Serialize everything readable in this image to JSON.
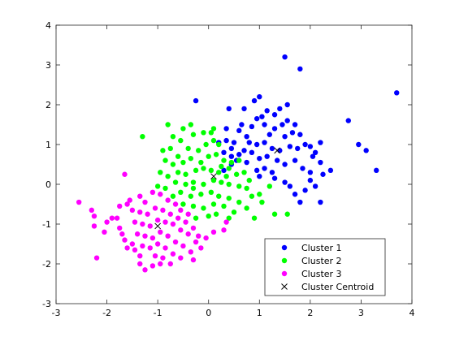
{
  "chart_data": {
    "type": "scatter",
    "title": "",
    "xlabel": "",
    "ylabel": "",
    "xlim": [
      -3,
      4
    ],
    "ylim": [
      -3,
      4
    ],
    "xticks": [
      -3,
      -2,
      -1,
      0,
      1,
      2,
      3,
      4
    ],
    "yticks": [
      -3,
      -2,
      -1,
      0,
      1,
      2,
      3,
      4
    ],
    "grid": false,
    "legend_position": "bottom-right",
    "series": [
      {
        "name": "Cluster 1",
        "color": "#0000ff",
        "marker": "circle",
        "points": [
          [
            1.5,
            3.2
          ],
          [
            1.8,
            2.9
          ],
          [
            -0.25,
            2.1
          ],
          [
            0.9,
            2.1
          ],
          [
            1.0,
            2.2
          ],
          [
            0.7,
            1.9
          ],
          [
            0.4,
            1.9
          ],
          [
            1.55,
            2.0
          ],
          [
            1.3,
            1.75
          ],
          [
            1.4,
            1.9
          ],
          [
            1.05,
            1.7
          ],
          [
            1.15,
            1.85
          ],
          [
            0.65,
            1.5
          ],
          [
            0.85,
            1.45
          ],
          [
            0.95,
            1.65
          ],
          [
            1.1,
            1.5
          ],
          [
            1.3,
            1.4
          ],
          [
            1.45,
            1.5
          ],
          [
            1.55,
            1.6
          ],
          [
            1.7,
            1.5
          ],
          [
            1.65,
            1.3
          ],
          [
            1.8,
            1.25
          ],
          [
            1.5,
            1.2
          ],
          [
            1.2,
            1.25
          ],
          [
            0.35,
            1.4
          ],
          [
            0.6,
            1.35
          ],
          [
            0.75,
            1.2
          ],
          [
            0.8,
            1.05
          ],
          [
            0.95,
            1.0
          ],
          [
            1.1,
            1.05
          ],
          [
            1.25,
            0.9
          ],
          [
            1.4,
            0.85
          ],
          [
            1.6,
            0.95
          ],
          [
            1.75,
            0.9
          ],
          [
            1.9,
            1.0
          ],
          [
            2.0,
            0.95
          ],
          [
            2.2,
            1.05
          ],
          [
            2.1,
            0.8
          ],
          [
            2.05,
            0.7
          ],
          [
            2.2,
            0.55
          ],
          [
            2.4,
            0.35
          ],
          [
            2.25,
            0.25
          ],
          [
            0.2,
            1.05
          ],
          [
            0.35,
            1.1
          ],
          [
            0.5,
            1.05
          ],
          [
            0.45,
            0.9
          ],
          [
            0.6,
            0.75
          ],
          [
            0.7,
            0.85
          ],
          [
            0.85,
            0.8
          ],
          [
            1.0,
            0.65
          ],
          [
            1.15,
            0.7
          ],
          [
            1.35,
            0.6
          ],
          [
            1.5,
            0.5
          ],
          [
            1.7,
            0.6
          ],
          [
            1.85,
            0.4
          ],
          [
            2.0,
            0.3
          ],
          [
            1.3,
            0.15
          ],
          [
            1.5,
            0.05
          ],
          [
            1.6,
            -0.05
          ],
          [
            1.7,
            -0.25
          ],
          [
            1.9,
            -0.15
          ],
          [
            2.1,
            -0.05
          ],
          [
            2.2,
            -0.45
          ],
          [
            1.8,
            -0.45
          ],
          [
            2.0,
            0.1
          ],
          [
            2.75,
            1.6
          ],
          [
            2.95,
            1.0
          ],
          [
            3.1,
            0.85
          ],
          [
            3.3,
            0.35
          ],
          [
            3.7,
            2.3
          ],
          [
            0.3,
            0.35
          ],
          [
            0.45,
            0.5
          ],
          [
            0.55,
            0.6
          ],
          [
            0.75,
            0.55
          ],
          [
            0.95,
            0.35
          ],
          [
            1.1,
            0.4
          ],
          [
            1.0,
            0.2
          ],
          [
            1.25,
            0.3
          ],
          [
            0.3,
            0.8
          ],
          [
            0.45,
            0.7
          ]
        ]
      },
      {
        "name": "Cluster 2",
        "color": "#00ff00",
        "marker": "circle",
        "points": [
          [
            -0.8,
            1.5
          ],
          [
            -1.3,
            1.2
          ],
          [
            -0.35,
            1.5
          ],
          [
            -0.5,
            1.4
          ],
          [
            -0.3,
            1.25
          ],
          [
            -0.1,
            1.3
          ],
          [
            0.05,
            1.3
          ],
          [
            0.1,
            1.4
          ],
          [
            -0.7,
            1.2
          ],
          [
            -0.55,
            1.1
          ],
          [
            -0.75,
            0.9
          ],
          [
            -0.9,
            0.85
          ],
          [
            -0.4,
            0.9
          ],
          [
            -0.2,
            0.85
          ],
          [
            -0.05,
            1.0
          ],
          [
            0.1,
            1.1
          ],
          [
            0.2,
            1.0
          ],
          [
            -0.85,
            0.6
          ],
          [
            -0.7,
            0.5
          ],
          [
            -0.5,
            0.55
          ],
          [
            -0.35,
            0.65
          ],
          [
            -0.15,
            0.55
          ],
          [
            0.0,
            0.7
          ],
          [
            0.15,
            0.75
          ],
          [
            0.3,
            0.6
          ],
          [
            0.4,
            0.4
          ],
          [
            -0.95,
            0.3
          ],
          [
            -0.8,
            0.2
          ],
          [
            -0.6,
            0.3
          ],
          [
            -0.45,
            0.25
          ],
          [
            -0.25,
            0.35
          ],
          [
            -0.1,
            0.4
          ],
          [
            0.05,
            0.35
          ],
          [
            0.2,
            0.3
          ],
          [
            0.35,
            0.2
          ],
          [
            0.55,
            0.25
          ],
          [
            0.7,
            0.3
          ],
          [
            0.8,
            0.1
          ],
          [
            -1.0,
            -0.05
          ],
          [
            -0.85,
            -0.1
          ],
          [
            -0.65,
            0.05
          ],
          [
            -0.45,
            0.0
          ],
          [
            -0.3,
            -0.1
          ],
          [
            -0.1,
            0.0
          ],
          [
            0.1,
            0.1
          ],
          [
            0.25,
            0.05
          ],
          [
            0.4,
            0.0
          ],
          [
            0.6,
            -0.05
          ],
          [
            0.75,
            -0.1
          ],
          [
            1.0,
            -0.25
          ],
          [
            1.2,
            -0.05
          ],
          [
            -0.7,
            -0.3
          ],
          [
            -0.55,
            -0.2
          ],
          [
            -0.35,
            -0.3
          ],
          [
            -0.15,
            -0.25
          ],
          [
            0.05,
            -0.2
          ],
          [
            0.2,
            -0.3
          ],
          [
            0.4,
            -0.35
          ],
          [
            0.6,
            -0.45
          ],
          [
            0.85,
            -0.3
          ],
          [
            -0.5,
            -0.5
          ],
          [
            -0.3,
            -0.55
          ],
          [
            -0.1,
            -0.6
          ],
          [
            0.1,
            -0.5
          ],
          [
            0.3,
            -0.55
          ],
          [
            0.5,
            -0.7
          ],
          [
            0.75,
            -0.6
          ],
          [
            1.05,
            -0.45
          ],
          [
            -0.25,
            -0.85
          ],
          [
            0.0,
            -0.8
          ],
          [
            0.15,
            -0.75
          ],
          [
            0.4,
            -0.85
          ],
          [
            0.9,
            -0.85
          ],
          [
            1.3,
            -0.75
          ],
          [
            1.55,
            -0.75
          ],
          [
            -0.3,
            0.05
          ],
          [
            0.45,
            0.55
          ],
          [
            0.6,
            0.6
          ],
          [
            0.25,
            0.45
          ],
          [
            -0.6,
            0.7
          ]
        ]
      },
      {
        "name": "Cluster 3",
        "color": "#ff00ff",
        "marker": "circle",
        "points": [
          [
            -1.65,
            0.25
          ],
          [
            -2.55,
            -0.45
          ],
          [
            -2.3,
            -0.65
          ],
          [
            -2.25,
            -0.8
          ],
          [
            -2.25,
            -1.05
          ],
          [
            -2.05,
            -1.2
          ],
          [
            -2.0,
            -0.95
          ],
          [
            -1.9,
            -0.85
          ],
          [
            -1.8,
            -0.85
          ],
          [
            -1.75,
            -1.1
          ],
          [
            -1.7,
            -1.25
          ],
          [
            -1.65,
            -1.4
          ],
          [
            -1.6,
            -1.6
          ],
          [
            -1.5,
            -1.5
          ],
          [
            -1.45,
            -1.65
          ],
          [
            -1.35,
            -1.8
          ],
          [
            -1.35,
            -2.0
          ],
          [
            -1.25,
            -2.15
          ],
          [
            -1.1,
            -2.05
          ],
          [
            -0.95,
            -2.0
          ],
          [
            -2.2,
            -1.85
          ],
          [
            -1.55,
            -0.4
          ],
          [
            -1.35,
            -0.3
          ],
          [
            -1.25,
            -0.45
          ],
          [
            -1.1,
            -0.2
          ],
          [
            -0.95,
            -0.25
          ],
          [
            -0.8,
            -0.4
          ],
          [
            -0.65,
            -0.5
          ],
          [
            -0.55,
            -0.65
          ],
          [
            -0.4,
            -0.75
          ],
          [
            -1.5,
            -0.65
          ],
          [
            -1.35,
            -0.7
          ],
          [
            -1.2,
            -0.75
          ],
          [
            -1.05,
            -0.6
          ],
          [
            -0.9,
            -0.65
          ],
          [
            -0.75,
            -0.75
          ],
          [
            -0.6,
            -0.85
          ],
          [
            -0.45,
            -0.95
          ],
          [
            -0.3,
            -1.1
          ],
          [
            -0.2,
            -1.3
          ],
          [
            -1.45,
            -0.95
          ],
          [
            -1.3,
            -1.0
          ],
          [
            -1.15,
            -1.05
          ],
          [
            -1.0,
            -0.9
          ],
          [
            -0.85,
            -0.95
          ],
          [
            -0.7,
            -1.0
          ],
          [
            -0.55,
            -1.15
          ],
          [
            -0.4,
            -1.25
          ],
          [
            -0.25,
            -1.45
          ],
          [
            -0.05,
            -1.35
          ],
          [
            0.1,
            -1.2
          ],
          [
            0.3,
            -1.15
          ],
          [
            0.35,
            -0.95
          ],
          [
            -1.4,
            -1.25
          ],
          [
            -1.25,
            -1.3
          ],
          [
            -1.1,
            -1.35
          ],
          [
            -0.95,
            -1.2
          ],
          [
            -0.8,
            -1.3
          ],
          [
            -0.65,
            -1.45
          ],
          [
            -0.5,
            -1.55
          ],
          [
            -0.35,
            -1.7
          ],
          [
            -0.15,
            -1.6
          ],
          [
            -1.3,
            -1.55
          ],
          [
            -1.15,
            -1.6
          ],
          [
            -1.0,
            -1.5
          ],
          [
            -0.85,
            -1.6
          ],
          [
            -0.7,
            -1.75
          ],
          [
            -0.55,
            -1.85
          ],
          [
            -0.3,
            -1.9
          ],
          [
            -1.05,
            -1.8
          ],
          [
            -0.9,
            -1.85
          ],
          [
            -0.75,
            -2.0
          ],
          [
            -1.75,
            -0.55
          ],
          [
            -1.6,
            -0.5
          ]
        ]
      },
      {
        "name": "Cluster Centroid",
        "color": "#000000",
        "marker": "x",
        "points": [
          [
            -1.0,
            -1.05
          ],
          [
            0.1,
            0.2
          ],
          [
            1.35,
            0.85
          ]
        ]
      }
    ]
  }
}
